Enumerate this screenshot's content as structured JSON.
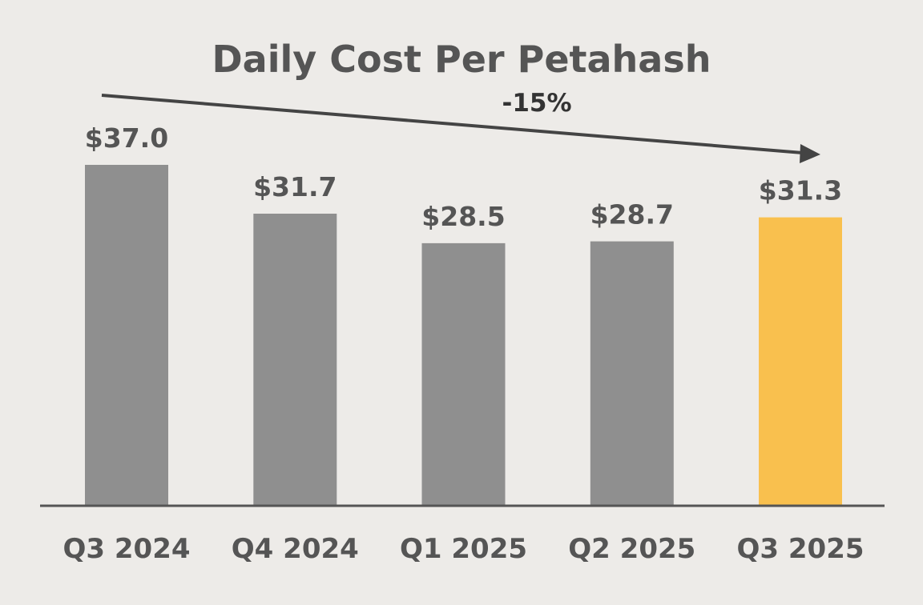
{
  "colors": {
    "background": "#edebe8",
    "bar_default": "#8f8f8f",
    "bar_highlight": "#f9c04e",
    "text": "#555555",
    "arrow": "#444444",
    "axis": "#555555"
  },
  "chart_data": {
    "type": "bar",
    "title": "Daily Cost Per Petahash",
    "xlabel": "",
    "ylabel": "",
    "ylim": [
      0,
      37.0
    ],
    "grid": false,
    "categories": [
      "Q3 2024",
      "Q4 2024",
      "Q1 2025",
      "Q2 2025",
      "Q3 2025"
    ],
    "values": [
      37.0,
      31.7,
      28.5,
      28.7,
      31.3
    ],
    "value_labels": [
      "$37.0",
      "$31.7",
      "$28.5",
      "$28.7",
      "$31.3"
    ],
    "highlight_index": 4,
    "annotation": {
      "text": "-15%",
      "type": "trend-arrow",
      "from": "Q3 2024",
      "to": "Q3 2025"
    }
  }
}
